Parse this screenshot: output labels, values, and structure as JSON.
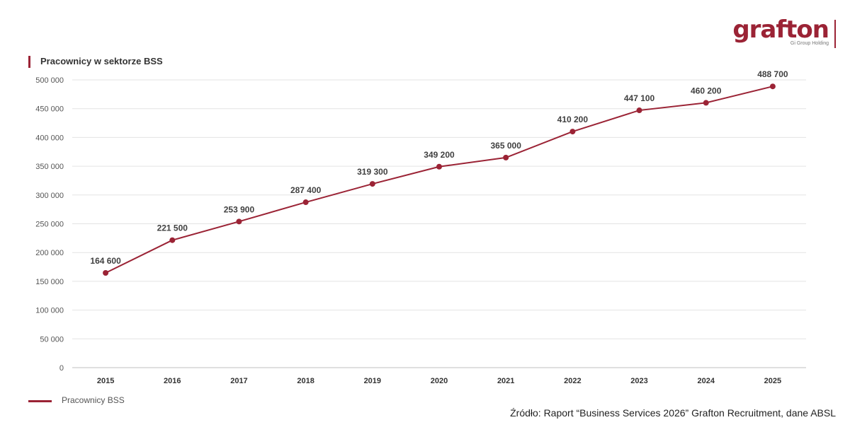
{
  "brand": {
    "name": "grafton",
    "tagline": "Gi Group Holding",
    "color": "#9b2335"
  },
  "source_note": "Źródło: Raport “Business Services 2026” Grafton Recruitment, dane ABSL",
  "chart_data": {
    "type": "line",
    "title": "Pracownicy w sektorze BSS",
    "xlabel": "",
    "ylabel": "",
    "categories": [
      "2015",
      "2016",
      "2017",
      "2018",
      "2019",
      "2020",
      "2021",
      "2022",
      "2023",
      "2024",
      "2025"
    ],
    "series": [
      {
        "name": "Pracownicy BSS",
        "values": [
          164600,
          221500,
          253900,
          287400,
          319300,
          349200,
          365000,
          410200,
          447100,
          460200,
          488700
        ],
        "labels": [
          "164 600",
          "221 500",
          "253 900",
          "287 400",
          "319 300",
          "349 200",
          "365 000",
          "410 200",
          "447 100",
          "460 200",
          "488 700"
        ],
        "color": "#9b2335"
      }
    ],
    "ylim": [
      0,
      500000
    ],
    "yticks": [
      0,
      50000,
      100000,
      150000,
      200000,
      250000,
      300000,
      350000,
      400000,
      450000,
      500000
    ],
    "ytick_labels": [
      "0",
      "50 000",
      "100 000",
      "150 000",
      "200 000",
      "250 000",
      "300 000",
      "350 000",
      "400 000",
      "450 000",
      "500 000"
    ],
    "grid": true,
    "legend_position": "bottom-left"
  }
}
